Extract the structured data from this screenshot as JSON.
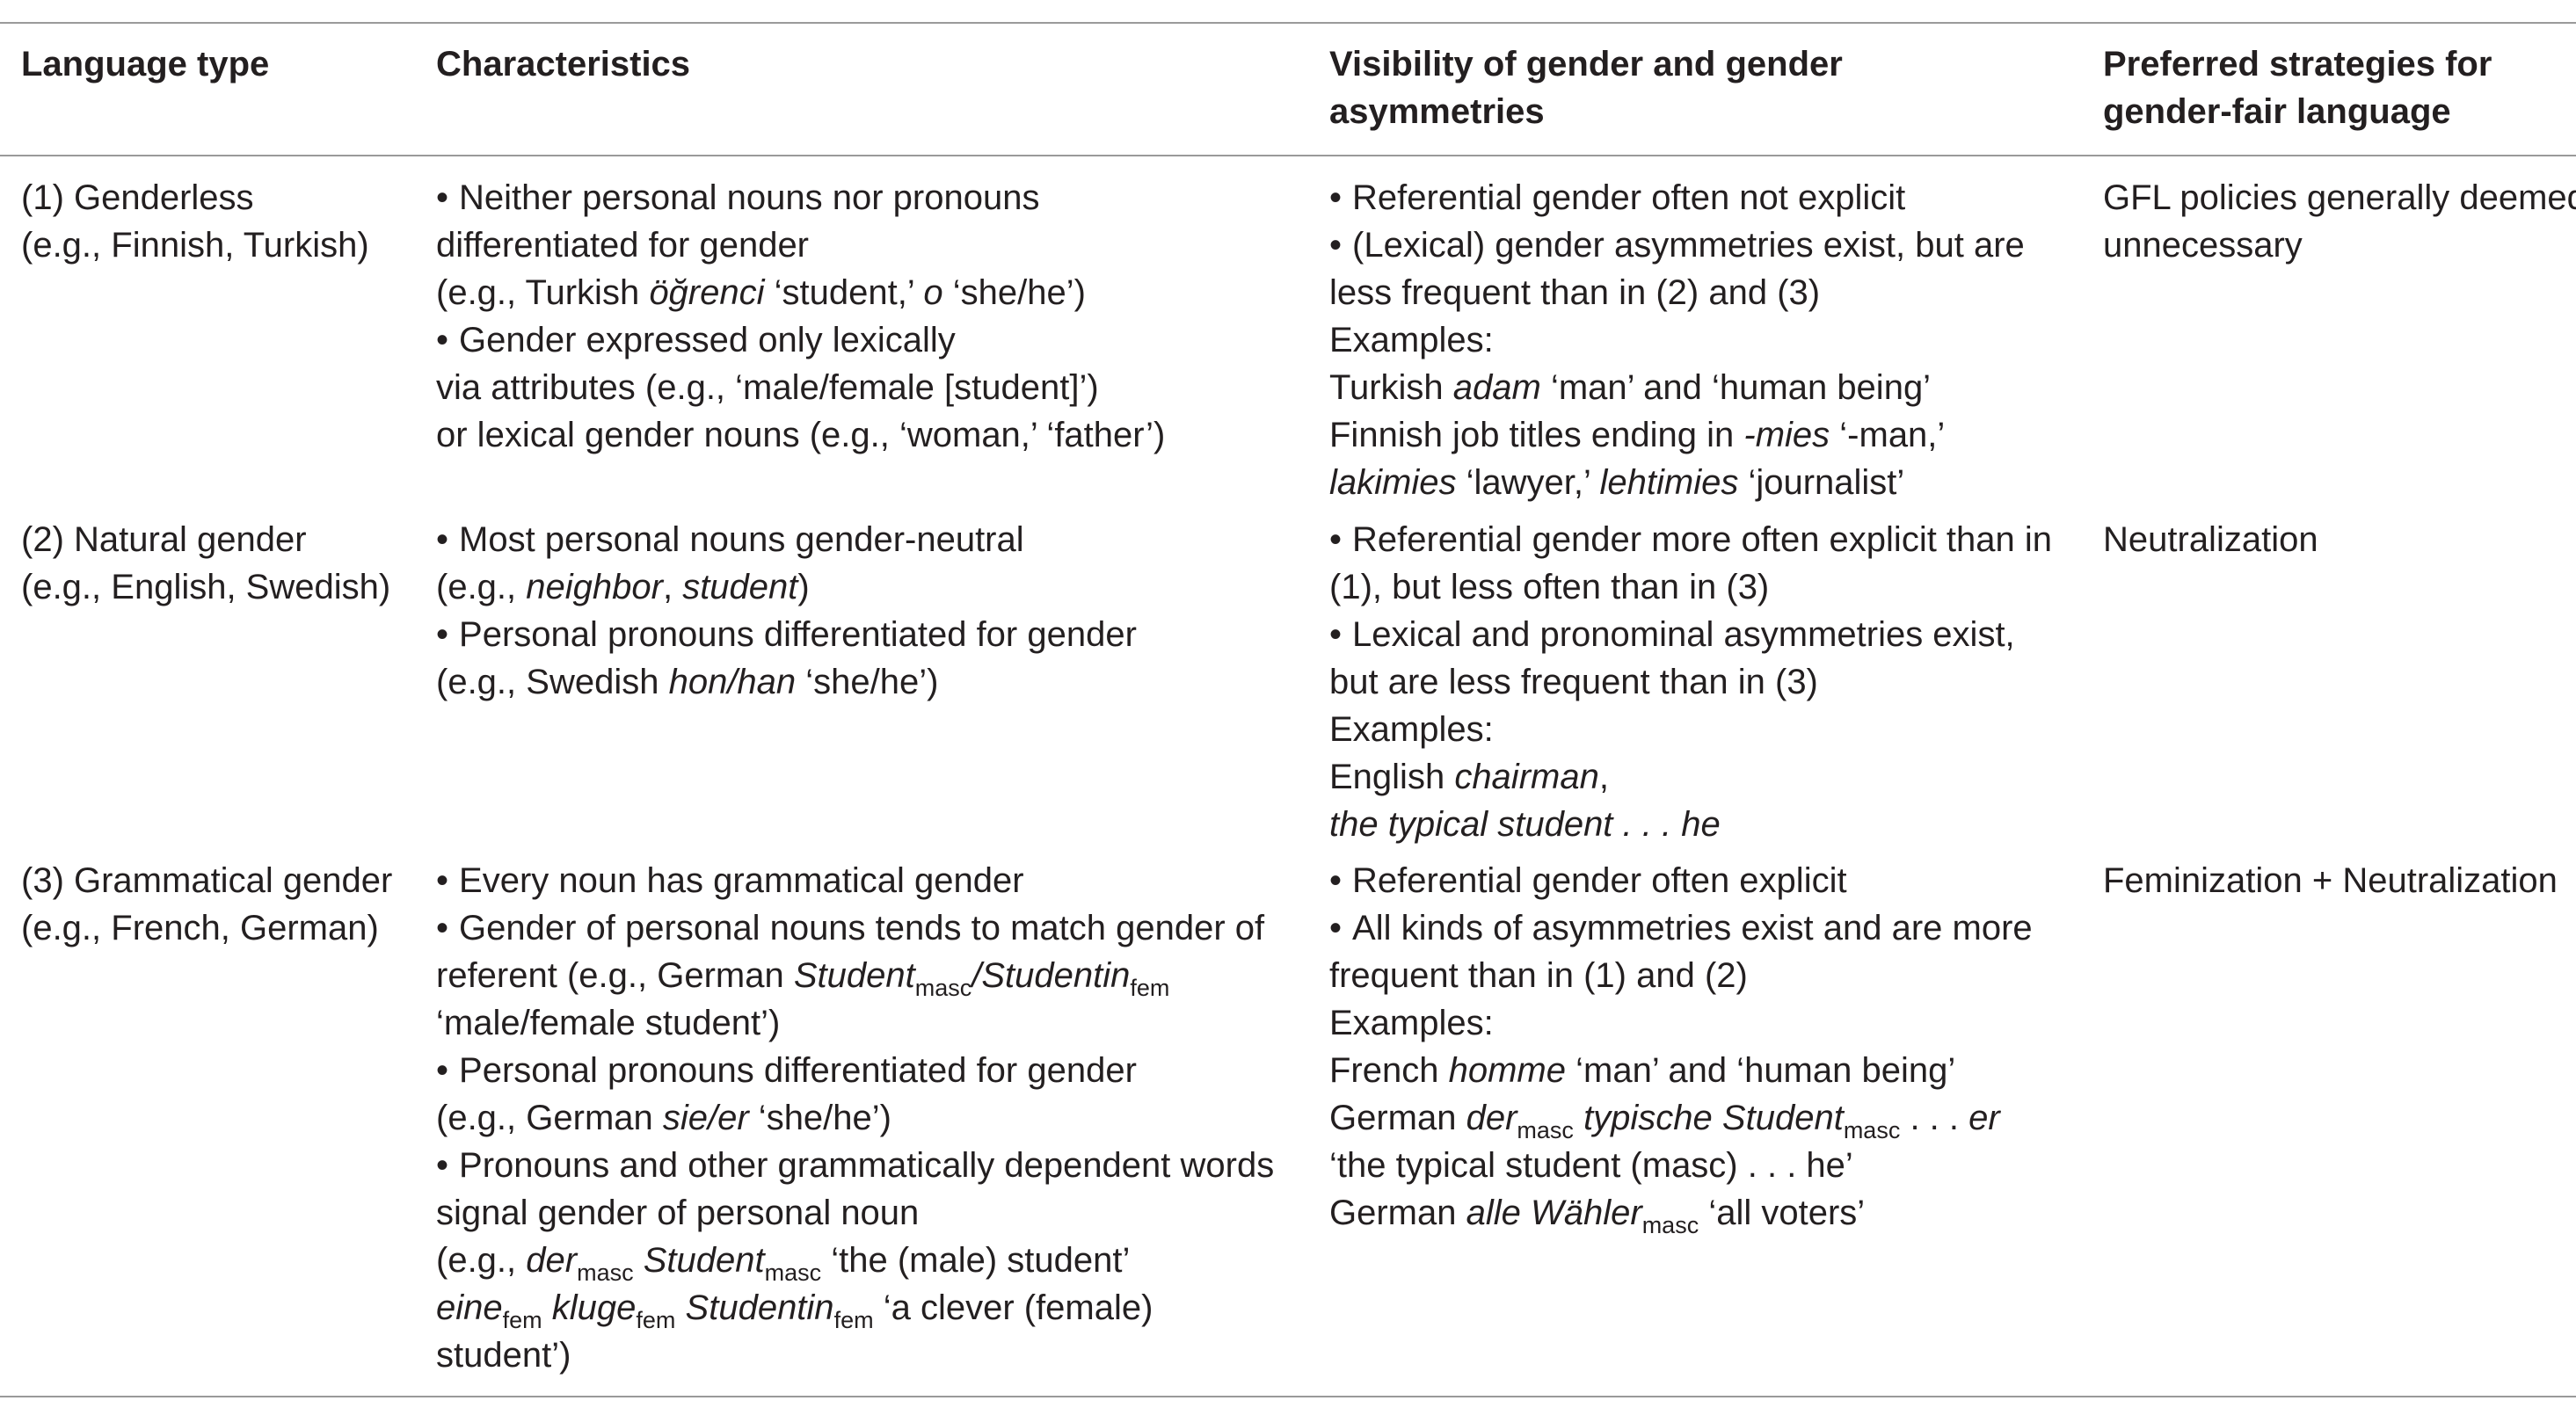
{
  "headers": {
    "language_type": "Language type",
    "characteristics": "Characteristics",
    "visibility_l1": "Visibility of gender and gender",
    "visibility_l2": "asymmetries",
    "strategies_l1": "Preferred strategies for",
    "strategies_l2": "gender-fair language"
  },
  "rows": [
    {
      "type_l1": "(1) Genderless",
      "type_l2": "(e.g., Finnish, Turkish)",
      "char": {
        "b1_l1": "Neither personal nouns nor pronouns",
        "b1_l2": "differentiated for gender",
        "b1_l3_pre": "(e.g., Turkish ",
        "b1_l3_it1": "öğrenci",
        "b1_l3_mid": " ‘student,’ ",
        "b1_l3_it2": "o",
        "b1_l3_post": " ‘she/he’)",
        "b2_l1": "Gender expressed only lexically",
        "b2_l2": "via attributes (e.g., ‘male/female [student]’)",
        "b2_l3": "or lexical gender nouns (e.g., ‘woman,’ ‘father’)"
      },
      "vis": {
        "b1": "Referential gender often not explicit",
        "b2_l1": "(Lexical) gender asymmetries exist, but are",
        "b2_l2": "less frequent than in (2) and (3)",
        "ex": "Examples:",
        "e1_pre": "Turkish ",
        "e1_it": "adam",
        "e1_post": " ‘man’ and ‘human being’",
        "e2_pre": "Finnish job titles ending in ",
        "e2_it": "-mies",
        "e2_post": " ‘-man,’",
        "e3_it1": "lakimies",
        "e3_mid": " ‘lawyer,’ ",
        "e3_it2": "lehtimies",
        "e3_post": " ‘journalist’"
      },
      "strategy_l1": "GFL policies generally deemed",
      "strategy_l2": "unnecessary"
    },
    {
      "type_l1": "(2) Natural gender",
      "type_l2": "(e.g., English, Swedish)",
      "char": {
        "b1_l1": "Most personal nouns gender-neutral",
        "b1_l2_pre": "(e.g., ",
        "b1_l2_it1": "neighbor",
        "b1_l2_mid": ", ",
        "b1_l2_it2": "student",
        "b1_l2_post": ")",
        "b2_l1": "Personal pronouns differentiated for gender",
        "b2_l2_pre": "(e.g., Swedish ",
        "b2_l2_it": "hon/han",
        "b2_l2_post": " ‘she/he’)"
      },
      "vis": {
        "b1_l1": "Referential gender more often explicit than in",
        "b1_l2": "(1), but less often than in (3)",
        "b2_l1": "Lexical and pronominal asymmetries exist,",
        "b2_l2": "but are less frequent than in (3)",
        "ex": "Examples:",
        "e1_pre": "English ",
        "e1_it": "chairman",
        "e1_post": ",",
        "e2_it": "the typical student . . . he"
      },
      "strategy_l1": "Neutralization"
    },
    {
      "type_l1": "(3) Grammatical gender",
      "type_l2": "(e.g., French, German)",
      "char": {
        "b1": "Every noun has grammatical gender",
        "b2_l1": "Gender of personal nouns tends to match gender of",
        "b2_l2_pre": "referent (e.g., German ",
        "b2_l2_it1": "Student",
        "b2_l2_sub1": "masc",
        "b2_l2_it2": "/Studentin",
        "b2_l2_sub2": "fem",
        "b2_l3": "‘male/female student’)",
        "b3_l1": "Personal pronouns differentiated for gender",
        "b3_l2_pre": "(e.g., German ",
        "b3_l2_it": "sie/er",
        "b3_l2_post": " ‘she/he’)",
        "b4_l1": "Pronouns and other grammatically dependent words",
        "b4_l2": "signal gender of personal noun",
        "b4_l3_pre": "(e.g., ",
        "b4_l3_it1": "der",
        "b4_l3_sub1": "masc",
        "b4_l3_it2": "Student",
        "b4_l3_sub2": "masc",
        "b4_l3_post": " ‘the (male) student’",
        "b4_l4_it1": "eine",
        "b4_l4_sub1": "fem",
        "b4_l4_it2": "kluge",
        "b4_l4_sub2": "fem",
        "b4_l4_it3": "Studentin",
        "b4_l4_sub3": "fem",
        "b4_l4_post": " ‘a clever (female)",
        "b4_l5": "student’)"
      },
      "vis": {
        "b1": "Referential gender often explicit",
        "b2_l1": "All kinds of asymmetries exist and are more",
        "b2_l2": "frequent than in (1) and (2)",
        "ex": "Examples:",
        "e1_pre": "French ",
        "e1_it": "homme",
        "e1_post": " ‘man’ and ‘human being’",
        "e2_pre": "German ",
        "e2_it1": "der",
        "e2_sub1": "masc",
        "e2_it2": "typische Student",
        "e2_sub2": "masc",
        "e2_mid": " . . . ",
        "e2_it3": "er",
        "e3": "‘the typical student (masc) . . . he’",
        "e4_pre": "German ",
        "e4_it": "alle Wähler",
        "e4_sub": "masc",
        "e4_post": " ‘all voters’"
      },
      "strategy_l1": "Feminization + Neutralization"
    }
  ],
  "bullet": "•"
}
